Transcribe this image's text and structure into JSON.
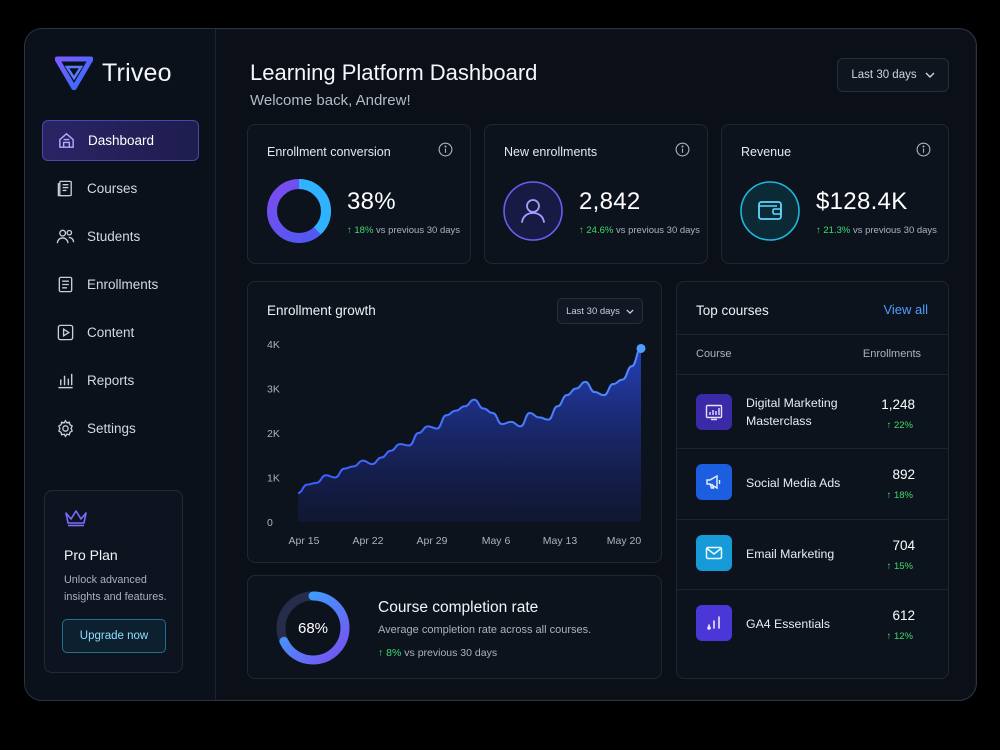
{
  "brand": {
    "name": "Triveo"
  },
  "sidebar": {
    "items": [
      {
        "label": "Dashboard",
        "icon": "home-icon",
        "active": true
      },
      {
        "label": "Courses",
        "icon": "book-icon"
      },
      {
        "label": "Students",
        "icon": "users-icon"
      },
      {
        "label": "Enrollments",
        "icon": "document-icon"
      },
      {
        "label": "Content",
        "icon": "play-icon"
      },
      {
        "label": "Reports",
        "icon": "bar-chart-icon"
      },
      {
        "label": "Settings",
        "icon": "gear-icon"
      }
    ],
    "pro": {
      "title": "Pro Plan",
      "desc": "Unlock advanced insights and features.",
      "button": "Upgrade now"
    }
  },
  "header": {
    "title": "Learning Platform Dashboard",
    "welcome": "Welcome back, Andrew!",
    "range": "Last 30 days"
  },
  "kpis": {
    "conversion": {
      "title": "Enrollment conversion",
      "value": "38%",
      "change": "18%",
      "suffix": "vs previous 30 days",
      "percent": 38
    },
    "enrollments": {
      "title": "New enrollments",
      "value": "2,842",
      "change": "24.6%",
      "suffix": "vs previous 30 days"
    },
    "revenue": {
      "title": "Revenue",
      "value": "$128.4K",
      "change": "21.3%",
      "suffix": "vs previous 30 days"
    }
  },
  "growth": {
    "title": "Enrollment growth",
    "range": "Last 30 days"
  },
  "chart_data": {
    "type": "area",
    "title": "Enrollment growth",
    "xlabel": "",
    "ylabel": "",
    "ylim": [
      0,
      4000
    ],
    "y_ticks": [
      "0",
      "1K",
      "2K",
      "3K",
      "4K"
    ],
    "x_ticks": [
      "Apr 15",
      "Apr 22",
      "Apr 29",
      "May 6",
      "May 13",
      "May 20"
    ],
    "x": [
      "Apr 14",
      "Apr 15",
      "Apr 16",
      "Apr 17",
      "Apr 18",
      "Apr 19",
      "Apr 20",
      "Apr 21",
      "Apr 22",
      "Apr 23",
      "Apr 24",
      "Apr 25",
      "Apr 26",
      "Apr 27",
      "Apr 28",
      "Apr 29",
      "Apr 30",
      "May 1",
      "May 2",
      "May 3",
      "May 4",
      "May 5",
      "May 6",
      "May 7",
      "May 8",
      "May 9",
      "May 10",
      "May 11",
      "May 12",
      "May 13",
      "May 14",
      "May 15",
      "May 16",
      "May 17",
      "May 18",
      "May 19",
      "May 20",
      "May 21"
    ],
    "values": [
      650,
      840,
      880,
      1050,
      1000,
      1200,
      1250,
      1380,
      1300,
      1450,
      1600,
      1750,
      1720,
      2000,
      2150,
      2100,
      2400,
      2500,
      2600,
      2750,
      2550,
      2450,
      2200,
      2250,
      2150,
      2450,
      2350,
      2300,
      2600,
      2850,
      3000,
      3150,
      2920,
      2850,
      3100,
      3200,
      3500,
      3900
    ],
    "grid": false,
    "legend": "none"
  },
  "top_courses": {
    "title": "Top courses",
    "view_all": "View all",
    "col_course": "Course",
    "col_enrollments": "Enrollments",
    "rows": [
      {
        "name": "Digital Marketing Masterclass",
        "value": "1,248",
        "change": "22%",
        "icon": "chart-board-icon",
        "color": "#3b2aa8"
      },
      {
        "name": "Social Media Ads",
        "value": "892",
        "change": "18%",
        "icon": "megaphone-icon",
        "color": "#1b5fe0"
      },
      {
        "name": "Email Marketing",
        "value": "704",
        "change": "15%",
        "icon": "envelope-icon",
        "color": "#169ad8"
      },
      {
        "name": "GA4 Essentials",
        "value": "612",
        "change": "12%",
        "icon": "analytics-icon",
        "color": "#4b36d8"
      }
    ]
  },
  "completion": {
    "title": "Course completion rate",
    "value": "68%",
    "percent": 68,
    "desc": "Average completion rate across all courses.",
    "change": "8%",
    "suffix": "vs previous 30 days"
  },
  "colors": {
    "accent_purple": "#6b4cf0",
    "accent_blue": "#2f9bff",
    "positive": "#3ddc6e",
    "link": "#4f9dff"
  }
}
